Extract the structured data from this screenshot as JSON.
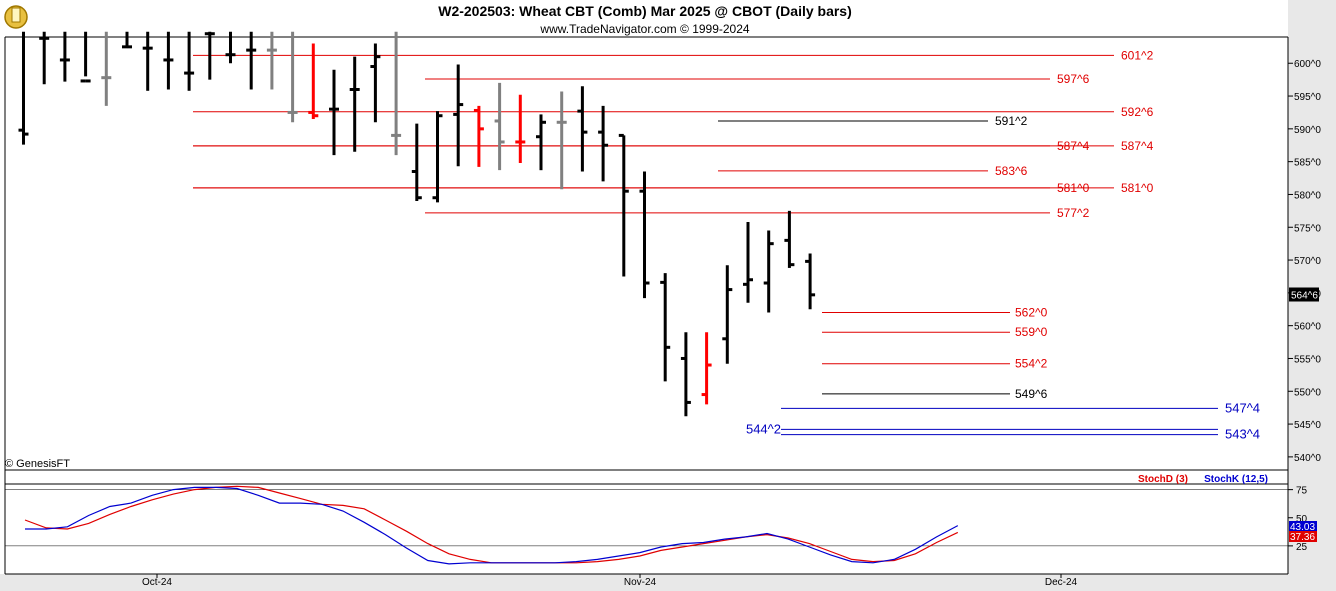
{
  "header": {
    "title": "W2-202503:  Wheat CBT (Comb) Mar 2025 @ CBOT  (Daily bars)",
    "subtitle": "www.TradeNavigator.com © 1999-2024",
    "watermark": "© GenesisFT"
  },
  "colors": {
    "up_bar": "#000000",
    "down_bar": "#ff0000",
    "neutral_bar": "#808080",
    "level_red": "#e00000",
    "level_blue": "#0000c0",
    "stoch_d": "#e00000",
    "stoch_k": "#0000d0",
    "panel_bg": "#e8e8e8"
  },
  "chart_data": [
    {
      "type": "ohlc",
      "price_axis": {
        "min": 538,
        "max": 604,
        "ticks": [
          "540^0",
          "545^0",
          "550^0",
          "555^0",
          "560^0",
          "565^0",
          "570^0",
          "575^0",
          "580^0",
          "585^0",
          "590^0",
          "595^0",
          "600^0"
        ],
        "last_price_label": "564^6"
      },
      "x_labels": [
        "Oct-24",
        "Nov-24",
        "Dec-24"
      ],
      "bars": [
        {
          "h": 604.8,
          "l": 587.6,
          "o": 589.8,
          "c": 589.2,
          "col": "k"
        },
        {
          "h": 604.8,
          "l": 596.8,
          "o": 603.8,
          "c": 603.8,
          "col": "k"
        },
        {
          "h": 604.8,
          "l": 597.2,
          "o": 600.5,
          "c": 600.5,
          "col": "k"
        },
        {
          "h": 604.8,
          "l": 598.0,
          "o": 597.3,
          "c": 597.3,
          "col": "k"
        },
        {
          "h": 604.8,
          "l": 593.5,
          "o": 597.8,
          "c": 597.8,
          "col": "g"
        },
        {
          "h": 604.8,
          "l": 602.5,
          "o": 602.5,
          "c": 602.5,
          "col": "k"
        },
        {
          "h": 604.8,
          "l": 595.8,
          "o": 602.3,
          "c": 602.3,
          "col": "k"
        },
        {
          "h": 604.8,
          "l": 596.0,
          "o": 600.5,
          "c": 600.5,
          "col": "k"
        },
        {
          "h": 604.8,
          "l": 595.8,
          "o": 598.5,
          "c": 598.5,
          "col": "k"
        },
        {
          "h": 604.8,
          "l": 597.5,
          "o": 604.5,
          "c": 604.5,
          "col": "k"
        },
        {
          "h": 604.8,
          "l": 600.0,
          "o": 601.3,
          "c": 601.3,
          "col": "k"
        },
        {
          "h": 604.8,
          "l": 596.0,
          "o": 602.0,
          "c": 602.0,
          "col": "k"
        },
        {
          "h": 604.8,
          "l": 596.0,
          "o": 602.0,
          "c": 602.0,
          "col": "g"
        },
        {
          "h": 604.8,
          "l": 591.0,
          "o": 592.5,
          "c": 592.5,
          "col": "g"
        },
        {
          "h": 603.0,
          "l": 591.5,
          "o": 592.5,
          "c": 592.0,
          "col": "r"
        },
        {
          "h": 599.0,
          "l": 586.0,
          "o": 593.0,
          "c": 593.0,
          "col": "k"
        },
        {
          "h": 601.0,
          "l": 586.5,
          "o": 596.0,
          "c": 596.0,
          "col": "k"
        },
        {
          "h": 603.0,
          "l": 591.0,
          "o": 599.5,
          "c": 601.0,
          "col": "k"
        },
        {
          "h": 604.8,
          "l": 586.0,
          "o": 589.0,
          "c": 589.0,
          "col": "g"
        },
        {
          "h": 590.8,
          "l": 579.0,
          "o": 583.5,
          "c": 579.5,
          "col": "k"
        },
        {
          "h": 592.7,
          "l": 578.8,
          "o": 579.5,
          "c": 592.0,
          "col": "k"
        },
        {
          "h": 599.8,
          "l": 584.3,
          "o": 592.2,
          "c": 593.7,
          "col": "k"
        },
        {
          "h": 593.5,
          "l": 584.2,
          "o": 592.8,
          "c": 590.0,
          "col": "r"
        },
        {
          "h": 597.0,
          "l": 583.7,
          "o": 591.2,
          "c": 588.0,
          "col": "g"
        },
        {
          "h": 595.2,
          "l": 584.8,
          "o": 588.0,
          "c": 588.0,
          "col": "r"
        },
        {
          "h": 592.2,
          "l": 583.7,
          "o": 588.8,
          "c": 591.0,
          "col": "k"
        },
        {
          "h": 595.7,
          "l": 580.8,
          "o": 591.0,
          "c": 591.0,
          "col": "g"
        },
        {
          "h": 596.5,
          "l": 583.5,
          "o": 592.7,
          "c": 589.5,
          "col": "k"
        },
        {
          "h": 593.5,
          "l": 582.0,
          "o": 589.5,
          "c": 587.5,
          "col": "k"
        },
        {
          "h": 589.0,
          "l": 567.5,
          "o": 589.0,
          "c": 580.5,
          "col": "k"
        },
        {
          "h": 583.5,
          "l": 564.2,
          "o": 580.5,
          "c": 566.5,
          "col": "k"
        },
        {
          "h": 568.0,
          "l": 551.5,
          "o": 566.6,
          "c": 556.7,
          "col": "k"
        },
        {
          "h": 559.0,
          "l": 546.2,
          "o": 555.0,
          "c": 548.3,
          "col": "k"
        },
        {
          "h": 559.0,
          "l": 548.0,
          "o": 549.5,
          "c": 554.0,
          "col": "r"
        },
        {
          "h": 569.2,
          "l": 554.2,
          "o": 558.0,
          "c": 565.5,
          "col": "k"
        },
        {
          "h": 575.8,
          "l": 563.5,
          "o": 566.3,
          "c": 567.0,
          "col": "k"
        },
        {
          "h": 574.5,
          "l": 562.0,
          "o": 566.5,
          "c": 572.5,
          "col": "k"
        },
        {
          "h": 577.5,
          "l": 568.8,
          "o": 573.0,
          "c": 569.3,
          "col": "k"
        },
        {
          "h": 571.0,
          "l": 562.5,
          "o": 569.8,
          "c": 564.7,
          "col": "k"
        }
      ],
      "levels": [
        {
          "price": 601.2,
          "label": "601^2",
          "color": "red"
        },
        {
          "price": 597.6,
          "label": "597^6",
          "color": "red"
        },
        {
          "price": 592.6,
          "label": "592^6",
          "color": "red"
        },
        {
          "price": 591.2,
          "label": "591^2",
          "color": "black"
        },
        {
          "price": 587.4,
          "label": "587^4",
          "color": "red"
        },
        {
          "price": 587.4,
          "label": "587^4",
          "color": "red"
        },
        {
          "price": 583.6,
          "label": "583^6",
          "color": "red"
        },
        {
          "price": 581.0,
          "label": "581^0",
          "color": "red"
        },
        {
          "price": 581.0,
          "label": "581^0",
          "color": "red"
        },
        {
          "price": 577.2,
          "label": "577^2",
          "color": "red"
        },
        {
          "price": 562.0,
          "label": "562^0",
          "color": "red"
        },
        {
          "price": 559.0,
          "label": "559^0",
          "color": "red"
        },
        {
          "price": 554.2,
          "label": "554^2",
          "color": "red"
        },
        {
          "price": 549.6,
          "label": "549^6",
          "color": "black"
        },
        {
          "price": 547.4,
          "label": "547^4",
          "color": "blue"
        },
        {
          "price": 544.2,
          "label": "544^2",
          "color": "blue"
        },
        {
          "price": 543.4,
          "label": "543^4",
          "color": "blue"
        }
      ]
    },
    {
      "type": "line",
      "title": "StochD (3)  StochK (12,5)",
      "y_ticks": [
        25,
        50,
        75
      ],
      "last_values": {
        "stoch_k": "43.03",
        "stoch_d": "37.36"
      },
      "series": [
        {
          "name": "StochD (3)",
          "values": [
            48,
            41,
            40,
            45,
            53,
            60,
            66,
            71,
            75,
            77,
            78,
            77,
            72,
            67,
            62,
            61,
            58,
            48,
            38,
            27,
            18,
            13,
            10,
            10,
            10,
            10,
            10,
            11,
            13,
            16,
            21,
            24,
            27,
            30,
            33,
            35,
            32,
            27,
            20,
            13,
            11,
            12,
            18,
            28,
            37
          ]
        },
        {
          "name": "StochK (12,5)",
          "values": [
            40,
            40,
            42,
            52,
            60,
            63,
            70,
            75,
            77,
            77,
            76,
            70,
            63,
            63,
            62,
            56,
            46,
            35,
            23,
            12,
            9,
            10,
            10,
            10,
            10,
            10,
            11,
            13,
            16,
            19,
            24,
            27,
            28,
            31,
            33,
            36,
            31,
            24,
            17,
            11,
            10,
            13,
            22,
            33,
            43
          ]
        }
      ]
    }
  ]
}
